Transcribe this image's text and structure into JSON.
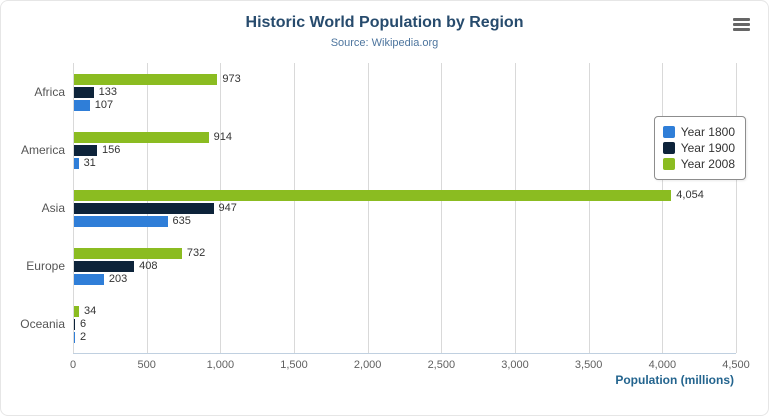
{
  "header": {
    "title": "Historic World Population by Region",
    "subtitle": "Source: Wikipedia.org"
  },
  "menu": {
    "icon": "hamburger-menu-icon"
  },
  "chart_data": {
    "type": "bar",
    "orientation": "horizontal",
    "title": "Historic World Population by Region",
    "subtitle": "Source: Wikipedia.org",
    "categories": [
      "Africa",
      "America",
      "Asia",
      "Europe",
      "Oceania"
    ],
    "series": [
      {
        "name": "Year 1800",
        "color": "#2f7ed8",
        "values": [
          107,
          31,
          635,
          203,
          2
        ]
      },
      {
        "name": "Year 1900",
        "color": "#0d233a",
        "values": [
          133,
          156,
          947,
          408,
          6
        ]
      },
      {
        "name": "Year 2008",
        "color": "#8bbc21",
        "values": [
          973,
          914,
          4054,
          732,
          34
        ]
      }
    ],
    "xlabel": "Population (millions)",
    "xlim": [
      0,
      4500
    ],
    "xticks": [
      0,
      500,
      1000,
      1500,
      2000,
      2500,
      3000,
      3500,
      4000,
      4500
    ],
    "tick_labels": [
      "0",
      "500",
      "1,000",
      "1,500",
      "2,000",
      "2,500",
      "3,000",
      "3,500",
      "4,000",
      "4,500"
    ],
    "grid": true,
    "legend_position": "right",
    "data_labels": true
  }
}
